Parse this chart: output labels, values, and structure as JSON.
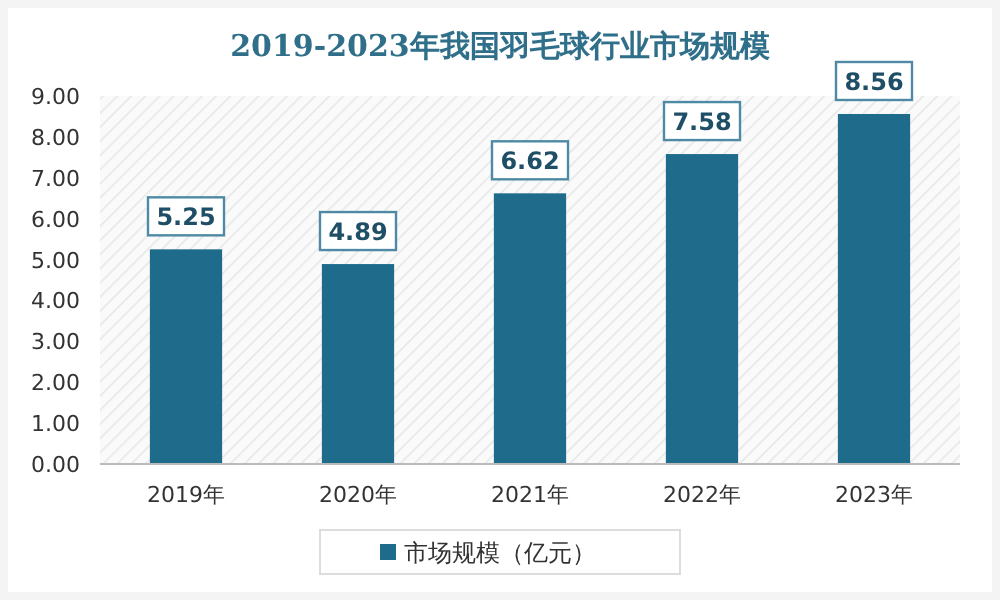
{
  "chart_data": {
    "type": "bar",
    "title": "2019-2023年我国羽毛球行业市场规模",
    "categories": [
      "2019年",
      "2020年",
      "2021年",
      "2022年",
      "2023年"
    ],
    "series": [
      {
        "name": "市场规模（亿元）",
        "color": "#1f6b8c",
        "values": [
          5.25,
          4.89,
          6.62,
          7.58,
          8.56
        ]
      }
    ],
    "ylim": [
      0,
      9
    ],
    "yticks": [
      {
        "value": 0,
        "label": "0.00"
      },
      {
        "value": 1,
        "label": "1.00"
      },
      {
        "value": 2,
        "label": "2.00"
      },
      {
        "value": 3,
        "label": "3.00"
      },
      {
        "value": 4,
        "label": "4.00"
      },
      {
        "value": 5,
        "label": "5.00"
      },
      {
        "value": 6,
        "label": "6.00"
      },
      {
        "value": 7,
        "label": "7.00"
      },
      {
        "value": 8,
        "label": "8.00"
      },
      {
        "value": 9,
        "label": "9.00"
      }
    ],
    "data_labels": true,
    "legend": "bottom"
  }
}
